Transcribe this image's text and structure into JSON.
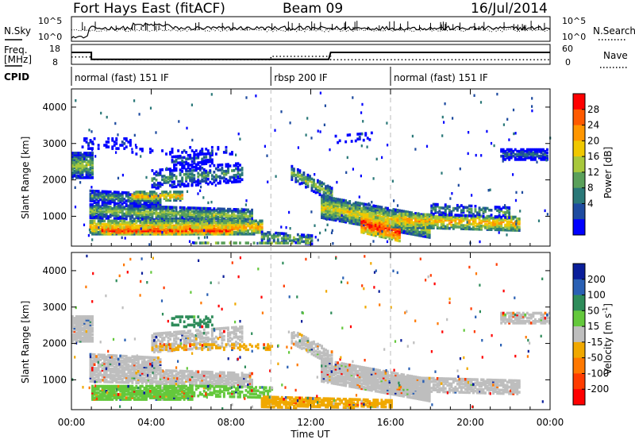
{
  "header": {
    "title": "Fort Hays East (fitACF)",
    "beam": "Beam 09",
    "date": "16/Jul/2014"
  },
  "top_panels": {
    "nsky_label": "N.Sky",
    "nsky_ticks": [
      "10^5",
      "10^0"
    ],
    "nsearch_label": "N.Search",
    "nsearch_ticks": [
      "10^5",
      "10^0"
    ],
    "freq_label": "Freq.",
    "freq_unit": "[MHz]",
    "freq_ticks": [
      "18",
      "8"
    ],
    "nave_label": "Nave",
    "nave_ticks": [
      "60",
      "0"
    ],
    "cpid_label": "CPID"
  },
  "cpid_segments": [
    {
      "label": "normal (fast) 151 IF",
      "start_hour": 0
    },
    {
      "label": "rbsp 200 IF",
      "start_hour": 10
    },
    {
      "label": "normal (fast) 151 IF",
      "start_hour": 16
    }
  ],
  "frequency_trace": {
    "hours": [
      0,
      1,
      1,
      12.9,
      13,
      24
    ],
    "mhz": [
      14,
      14,
      10.5,
      10.5,
      14,
      14
    ]
  },
  "nave_trace": {
    "hours": [
      0,
      1,
      1,
      10,
      10,
      13,
      13,
      24
    ],
    "value": [
      22,
      22,
      14,
      14,
      24,
      24,
      14,
      14
    ]
  },
  "chart_data": [
    {
      "type": "heatmap",
      "name": "power",
      "ylabel": "Slant Range [km]",
      "yticks": [
        1000,
        2000,
        3000,
        4000
      ],
      "ylim": [
        180,
        4500
      ],
      "xlim": [
        0,
        24
      ],
      "colorbar_label": "Power [dB]",
      "colorbar_ticks": [
        28,
        24,
        20,
        16,
        12,
        8,
        4
      ],
      "colorbar_colors": [
        "#ff0000",
        "#ff5a00",
        "#ff9600",
        "#f0c800",
        "#a8c83c",
        "#5aa05a",
        "#2a7878",
        "#1e4ba0",
        "#0000ff"
      ]
    },
    {
      "type": "heatmap",
      "name": "velocity",
      "ylabel": "Slant Range [km]",
      "yticks": [
        1000,
        2000,
        3000,
        4000
      ],
      "ylim": [
        180,
        4500
      ],
      "xlim": [
        0,
        24
      ],
      "colorbar_label": "Velocity [m s",
      "colorbar_label_sup": "-1",
      "colorbar_label_end": "]",
      "colorbar_ticks": [
        "200",
        "100",
        "50",
        "15",
        "-15",
        "-50",
        "-100",
        "-200"
      ],
      "colorbar_colors": [
        "#0a1e9a",
        "#2a60b4",
        "#2e8c5a",
        "#64c83c",
        "#bebebe",
        "#f0a800",
        "#ff7800",
        "#ff3c00",
        "#ff0000"
      ]
    }
  ],
  "xaxis": {
    "title": "Time UT",
    "ticks": [
      "00:00",
      "04:00",
      "08:00",
      "12:00",
      "16:00",
      "20:00",
      "00:00"
    ]
  }
}
